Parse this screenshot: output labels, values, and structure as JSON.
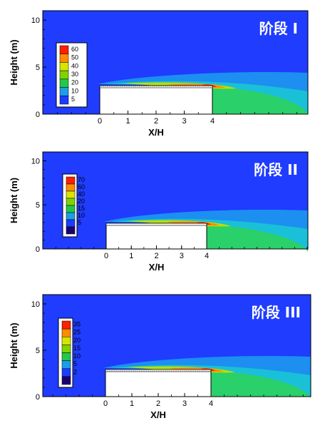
{
  "chart_data": [
    {
      "type": "heatmap",
      "title": "阶段 I",
      "xlabel": "X/H",
      "ylabel": "Height (m)",
      "x_ticks": [
        "0",
        "1",
        "2",
        "3",
        "4"
      ],
      "y_ticks": [
        "0",
        "5",
        "10"
      ],
      "ylim": [
        0,
        11
      ],
      "legend_levels": [
        "60",
        "50",
        "40",
        "30",
        "20",
        "10",
        "5"
      ],
      "legend_placement": "top-left",
      "legend_colors": [
        "#ff2000",
        "#ff8c00",
        "#d8e400",
        "#7fd400",
        "#22c848",
        "#1c9ee8",
        "#1c3cff"
      ]
    },
    {
      "type": "heatmap",
      "title": "阶段 II",
      "xlabel": "X/H",
      "ylabel": "Height (m)",
      "x_ticks": [
        "0",
        "1",
        "2",
        "3",
        "4"
      ],
      "y_ticks": [
        "0",
        "5",
        "10"
      ],
      "ylim": [
        0,
        11
      ],
      "legend_levels": [
        "70",
        "60",
        "40",
        "20",
        "15",
        "10",
        "5"
      ],
      "legend_placement": "top-left",
      "legend_colors": [
        "#ff2000",
        "#ff8c00",
        "#d8e400",
        "#7fd400",
        "#22c848",
        "#1c9ee8",
        "#1c3cff",
        "#1c0070"
      ]
    },
    {
      "type": "heatmap",
      "title": "阶段 III",
      "xlabel": "X/H",
      "ylabel": "Height (m)",
      "x_ticks": [
        "0",
        "1",
        "2",
        "3",
        "4"
      ],
      "y_ticks": [
        "0",
        "5",
        "10"
      ],
      "ylim": [
        0,
        11
      ],
      "legend_levels": [
        "35",
        "25",
        "20",
        "15",
        "10",
        "5",
        "2"
      ],
      "legend_placement": "top-left",
      "legend_colors": [
        "#ff2000",
        "#ff8c00",
        "#d8e400",
        "#7fd400",
        "#22c848",
        "#1c9ee8",
        "#1c3cff",
        "#1c0070"
      ]
    }
  ]
}
